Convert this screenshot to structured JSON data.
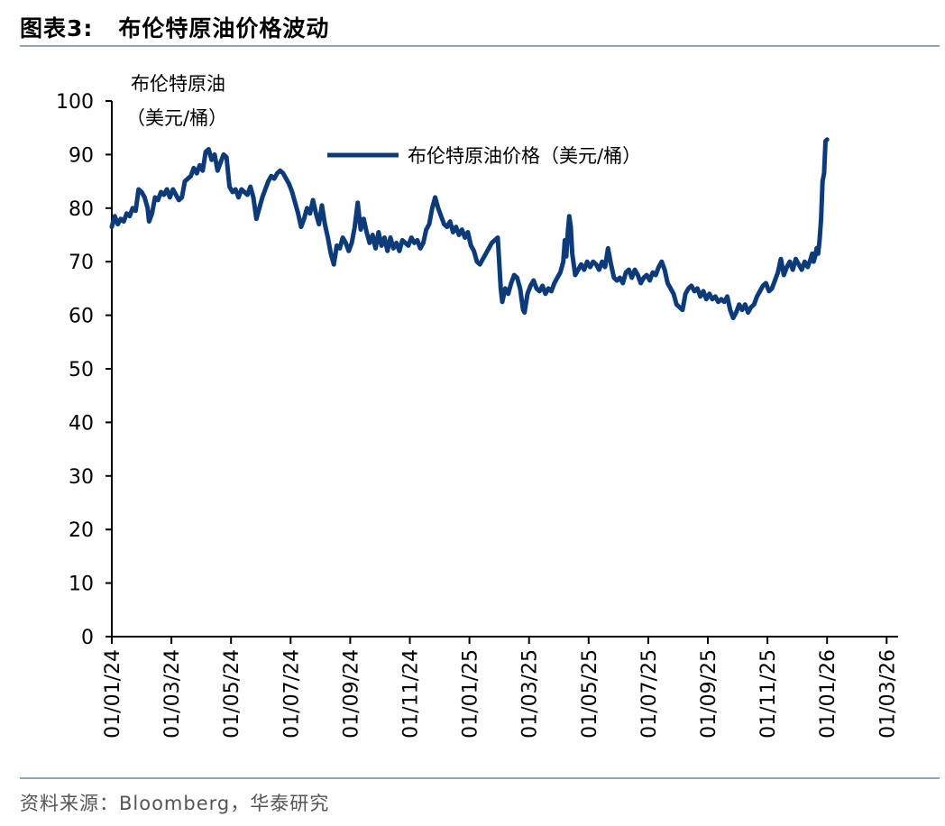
{
  "figure": {
    "label": "图表3:",
    "title": "布伦特原油价格波动",
    "source": "资料来源：Bloomberg，华泰研究"
  },
  "colors": {
    "line": "#0d3b7a",
    "axis": "#000000",
    "rule": "#8ea5bf"
  },
  "chart_data": {
    "type": "line",
    "ylabel_line1": "布伦特原油",
    "ylabel_line2": "（美元/桶）",
    "ylim": [
      0,
      100
    ],
    "yticks": [
      0,
      10,
      20,
      30,
      40,
      50,
      60,
      70,
      80,
      90,
      100
    ],
    "xticks": [
      "01/01/24",
      "01/03/24",
      "01/05/24",
      "01/07/24",
      "01/09/24",
      "01/11/24",
      "01/01/25",
      "01/03/25",
      "01/05/25",
      "01/07/25",
      "01/09/25",
      "01/11/25",
      "01/01/26",
      "01/03/26"
    ],
    "x_month_range": [
      0,
      26.2
    ],
    "legend": "布伦特原油价格（美元/桶）",
    "series": [
      {
        "name": "布伦特原油价格（美元/桶）",
        "points": [
          [
            0.0,
            76.5
          ],
          [
            0.1,
            78.5
          ],
          [
            0.2,
            77.0
          ],
          [
            0.3,
            78.0
          ],
          [
            0.4,
            77.5
          ],
          [
            0.5,
            79.0
          ],
          [
            0.6,
            78.5
          ],
          [
            0.7,
            80.0
          ],
          [
            0.8,
            79.5
          ],
          [
            0.9,
            83.5
          ],
          [
            1.0,
            83.0
          ],
          [
            1.1,
            82.0
          ],
          [
            1.2,
            80.0
          ],
          [
            1.25,
            77.5
          ],
          [
            1.35,
            79.0
          ],
          [
            1.45,
            82.0
          ],
          [
            1.55,
            81.5
          ],
          [
            1.65,
            83.0
          ],
          [
            1.75,
            82.5
          ],
          [
            1.85,
            83.5
          ],
          [
            1.95,
            82.0
          ],
          [
            2.05,
            83.5
          ],
          [
            2.15,
            82.5
          ],
          [
            2.25,
            81.5
          ],
          [
            2.35,
            82.0
          ],
          [
            2.45,
            85.0
          ],
          [
            2.55,
            85.5
          ],
          [
            2.65,
            86.0
          ],
          [
            2.75,
            87.5
          ],
          [
            2.85,
            86.5
          ],
          [
            2.95,
            88.0
          ],
          [
            3.05,
            87.0
          ],
          [
            3.15,
            90.5
          ],
          [
            3.25,
            91.0
          ],
          [
            3.35,
            89.0
          ],
          [
            3.45,
            90.0
          ],
          [
            3.55,
            87.0
          ],
          [
            3.65,
            88.5
          ],
          [
            3.75,
            90.0
          ],
          [
            3.85,
            89.5
          ],
          [
            3.95,
            84.0
          ],
          [
            4.05,
            83.0
          ],
          [
            4.15,
            83.5
          ],
          [
            4.25,
            82.0
          ],
          [
            4.35,
            83.5
          ],
          [
            4.45,
            83.0
          ],
          [
            4.55,
            82.5
          ],
          [
            4.65,
            84.0
          ],
          [
            4.75,
            82.0
          ],
          [
            4.85,
            78.0
          ],
          [
            4.95,
            80.0
          ],
          [
            5.05,
            82.0
          ],
          [
            5.15,
            83.5
          ],
          [
            5.25,
            85.0
          ],
          [
            5.35,
            86.0
          ],
          [
            5.45,
            85.5
          ],
          [
            5.55,
            86.5
          ],
          [
            5.65,
            87.0
          ],
          [
            5.75,
            86.5
          ],
          [
            5.85,
            85.5
          ],
          [
            5.95,
            84.5
          ],
          [
            6.05,
            83.0
          ],
          [
            6.15,
            81.0
          ],
          [
            6.25,
            79.0
          ],
          [
            6.35,
            76.5
          ],
          [
            6.45,
            78.0
          ],
          [
            6.55,
            80.0
          ],
          [
            6.65,
            79.0
          ],
          [
            6.75,
            81.5
          ],
          [
            6.85,
            79.0
          ],
          [
            6.95,
            77.0
          ],
          [
            7.05,
            80.5
          ],
          [
            7.15,
            77.0
          ],
          [
            7.25,
            74.5
          ],
          [
            7.35,
            71.5
          ],
          [
            7.45,
            69.5
          ],
          [
            7.55,
            73.0
          ],
          [
            7.65,
            72.5
          ],
          [
            7.75,
            74.5
          ],
          [
            7.85,
            73.5
          ],
          [
            7.95,
            72.0
          ],
          [
            8.05,
            73.5
          ],
          [
            8.15,
            76.5
          ],
          [
            8.25,
            81.0
          ],
          [
            8.35,
            76.0
          ],
          [
            8.45,
            78.0
          ],
          [
            8.55,
            75.5
          ],
          [
            8.65,
            73.5
          ],
          [
            8.75,
            75.0
          ],
          [
            8.85,
            72.5
          ],
          [
            8.95,
            75.5
          ],
          [
            9.05,
            73.0
          ],
          [
            9.15,
            74.5
          ],
          [
            9.25,
            72.0
          ],
          [
            9.35,
            74.5
          ],
          [
            9.45,
            72.5
          ],
          [
            9.55,
            73.5
          ],
          [
            9.65,
            72.0
          ],
          [
            9.75,
            74.0
          ],
          [
            9.85,
            73.5
          ],
          [
            9.95,
            73.0
          ],
          [
            10.05,
            74.5
          ],
          [
            10.15,
            73.5
          ],
          [
            10.25,
            74.0
          ],
          [
            10.35,
            72.5
          ],
          [
            10.45,
            73.5
          ],
          [
            10.55,
            76.0
          ],
          [
            10.65,
            77.0
          ],
          [
            10.75,
            80.0
          ],
          [
            10.85,
            82.0
          ],
          [
            10.95,
            80.0
          ],
          [
            11.05,
            78.5
          ],
          [
            11.15,
            77.0
          ],
          [
            11.25,
            76.5
          ],
          [
            11.35,
            77.5
          ],
          [
            11.45,
            75.5
          ],
          [
            11.55,
            76.5
          ],
          [
            11.65,
            75.0
          ],
          [
            11.75,
            76.0
          ],
          [
            11.85,
            74.5
          ],
          [
            11.95,
            75.5
          ],
          [
            12.05,
            73.0
          ],
          [
            12.15,
            72.0
          ],
          [
            12.25,
            70.0
          ],
          [
            12.35,
            69.5
          ],
          [
            12.45,
            70.5
          ],
          [
            12.55,
            71.5
          ],
          [
            12.65,
            72.5
          ],
          [
            12.75,
            73.5
          ],
          [
            12.85,
            74.0
          ],
          [
            12.95,
            74.5
          ],
          [
            13.0,
            70.0
          ],
          [
            13.05,
            65.0
          ],
          [
            13.1,
            62.5
          ],
          [
            13.2,
            65.0
          ],
          [
            13.3,
            64.0
          ],
          [
            13.4,
            66.0
          ],
          [
            13.5,
            67.5
          ],
          [
            13.6,
            67.0
          ],
          [
            13.7,
            65.0
          ],
          [
            13.8,
            61.0
          ],
          [
            13.85,
            60.5
          ],
          [
            13.95,
            64.0
          ],
          [
            14.05,
            65.5
          ],
          [
            14.15,
            66.5
          ],
          [
            14.25,
            65.0
          ],
          [
            14.35,
            64.5
          ],
          [
            14.45,
            65.5
          ],
          [
            14.55,
            64.0
          ],
          [
            14.65,
            65.0
          ],
          [
            14.75,
            64.5
          ],
          [
            14.85,
            66.0
          ],
          [
            14.95,
            67.0
          ],
          [
            15.05,
            68.0
          ],
          [
            15.15,
            70.0
          ],
          [
            15.2,
            74.0
          ],
          [
            15.25,
            71.0
          ],
          [
            15.3,
            75.5
          ],
          [
            15.35,
            78.5
          ],
          [
            15.4,
            76.5
          ],
          [
            15.45,
            71.5
          ],
          [
            15.5,
            69.5
          ],
          [
            15.55,
            67.5
          ],
          [
            15.65,
            68.5
          ],
          [
            15.75,
            69.5
          ],
          [
            15.85,
            68.5
          ],
          [
            15.95,
            70.0
          ],
          [
            16.05,
            69.0
          ],
          [
            16.15,
            70.0
          ],
          [
            16.25,
            69.5
          ],
          [
            16.35,
            68.5
          ],
          [
            16.45,
            70.0
          ],
          [
            16.55,
            69.0
          ],
          [
            16.65,
            72.5
          ],
          [
            16.75,
            69.5
          ],
          [
            16.85,
            67.0
          ],
          [
            16.95,
            66.5
          ],
          [
            17.05,
            67.0
          ],
          [
            17.15,
            66.0
          ],
          [
            17.25,
            68.0
          ],
          [
            17.35,
            68.5
          ],
          [
            17.45,
            67.0
          ],
          [
            17.55,
            68.5
          ],
          [
            17.65,
            67.5
          ],
          [
            17.75,
            66.0
          ],
          [
            17.85,
            67.0
          ],
          [
            17.95,
            67.5
          ],
          [
            18.05,
            66.5
          ],
          [
            18.15,
            68.0
          ],
          [
            18.25,
            67.5
          ],
          [
            18.35,
            69.0
          ],
          [
            18.45,
            70.0
          ],
          [
            18.55,
            68.5
          ],
          [
            18.65,
            66.0
          ],
          [
            18.75,
            65.0
          ],
          [
            18.85,
            64.0
          ],
          [
            18.95,
            62.0
          ],
          [
            19.05,
            61.5
          ],
          [
            19.15,
            61.0
          ],
          [
            19.25,
            64.0
          ],
          [
            19.35,
            65.0
          ],
          [
            19.45,
            65.5
          ],
          [
            19.55,
            64.5
          ],
          [
            19.65,
            65.0
          ],
          [
            19.75,
            63.5
          ],
          [
            19.85,
            64.5
          ],
          [
            19.95,
            63.0
          ],
          [
            20.05,
            64.0
          ],
          [
            20.15,
            63.0
          ],
          [
            20.25,
            63.5
          ],
          [
            20.35,
            62.5
          ],
          [
            20.45,
            63.0
          ],
          [
            20.55,
            62.5
          ],
          [
            20.65,
            63.5
          ],
          [
            20.75,
            61.0
          ],
          [
            20.85,
            59.5
          ],
          [
            20.95,
            60.5
          ],
          [
            21.05,
            62.0
          ],
          [
            21.15,
            61.0
          ],
          [
            21.25,
            62.0
          ],
          [
            21.35,
            60.5
          ],
          [
            21.45,
            61.5
          ],
          [
            21.55,
            62.0
          ],
          [
            21.65,
            63.5
          ],
          [
            21.75,
            64.5
          ],
          [
            21.85,
            65.5
          ],
          [
            21.95,
            66.0
          ],
          [
            22.05,
            64.5
          ],
          [
            22.15,
            65.0
          ],
          [
            22.25,
            66.5
          ],
          [
            22.35,
            68.0
          ],
          [
            22.45,
            70.5
          ],
          [
            22.55,
            67.5
          ],
          [
            22.65,
            69.0
          ],
          [
            22.75,
            70.0
          ],
          [
            22.85,
            68.5
          ],
          [
            22.95,
            70.5
          ],
          [
            23.05,
            69.5
          ],
          [
            23.15,
            68.5
          ],
          [
            23.25,
            70.0
          ],
          [
            23.35,
            69.0
          ],
          [
            23.45,
            70.5
          ],
          [
            23.5,
            71.5
          ],
          [
            23.55,
            70.0
          ],
          [
            23.6,
            71.0
          ],
          [
            23.65,
            72.5
          ],
          [
            23.7,
            71.5
          ],
          [
            23.75,
            74.0
          ],
          [
            23.8,
            78.0
          ],
          [
            23.85,
            85.0
          ],
          [
            23.9,
            86.5
          ],
          [
            23.95,
            92.5
          ],
          [
            24.0,
            92.8
          ]
        ]
      }
    ]
  }
}
